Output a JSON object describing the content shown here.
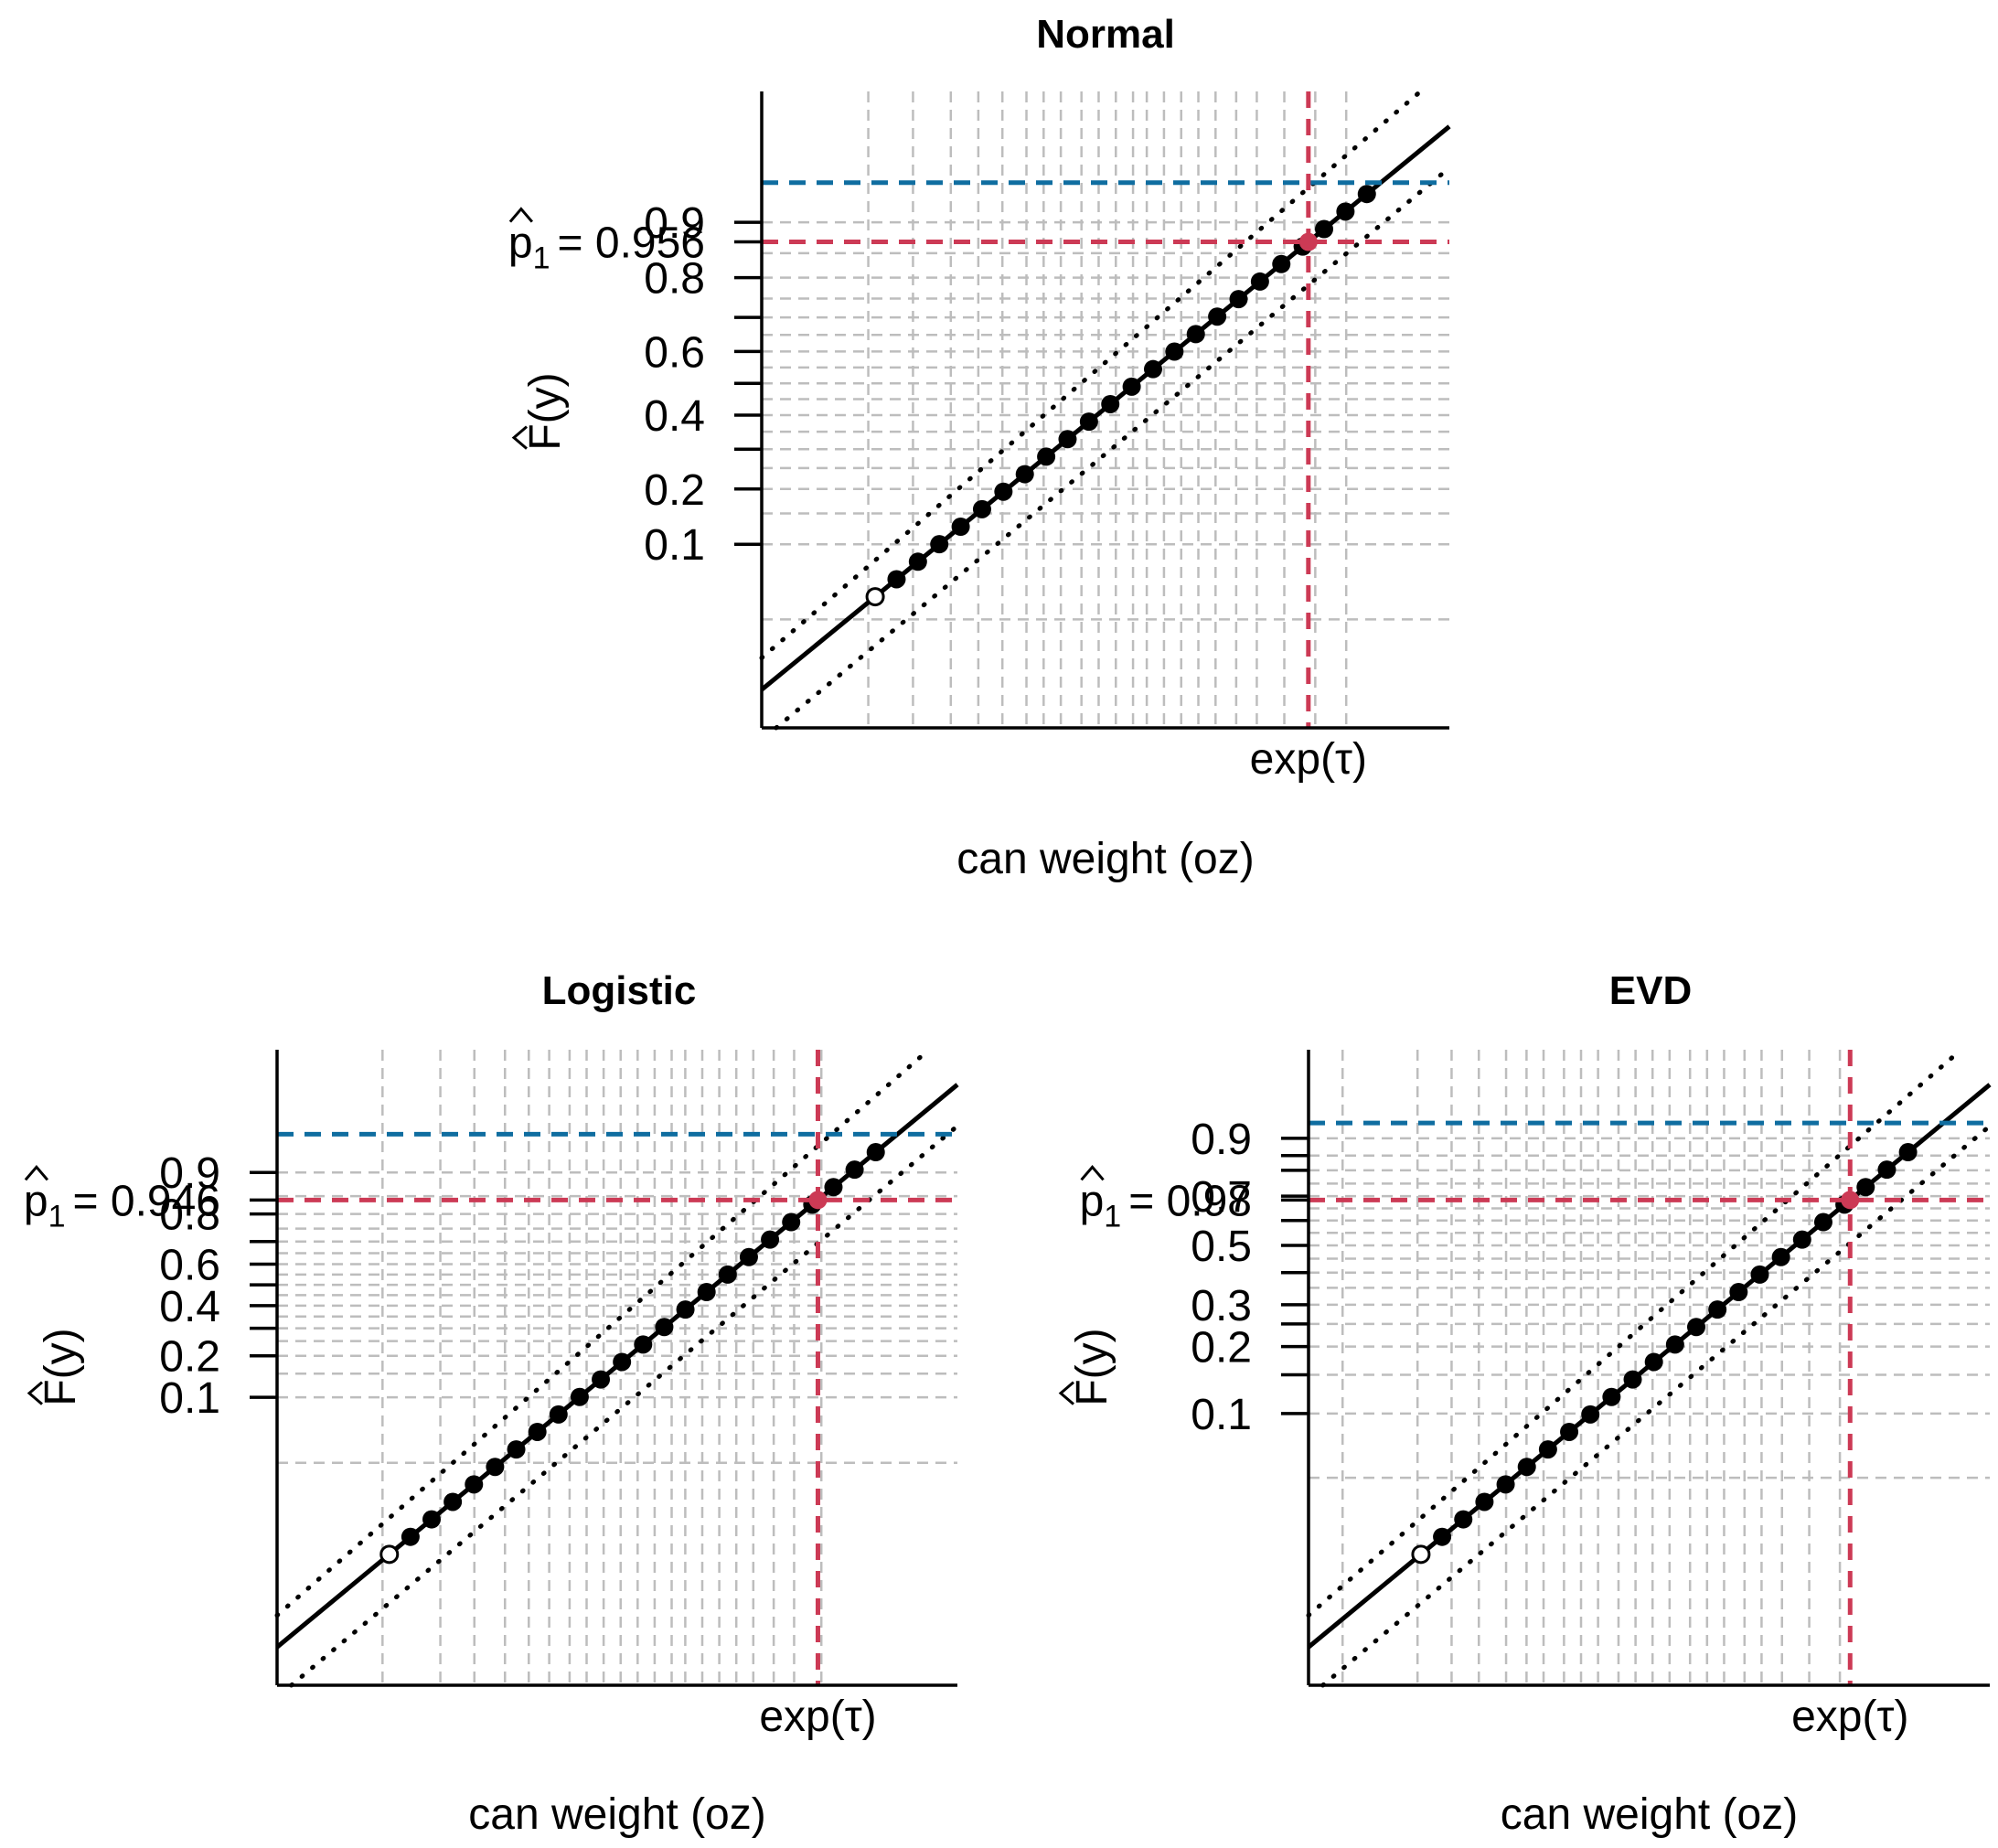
{
  "colors": {
    "red": "#cc3a55",
    "blue": "#0f6da0",
    "grid": "#bdbdbd",
    "ink": "#000000"
  },
  "chart_data": [
    {
      "type": "scatter",
      "title": "Normal",
      "xlabel": "can weight (oz)",
      "ylabel": "F(y)",
      "x_special_label": "exp(τ)",
      "p_hat_label": "p",
      "p_hat_value": "0.956",
      "p_hat_text": "= 0.956",
      "yticks": [
        {
          "value": 0.1,
          "label": "0.1"
        },
        {
          "value": 0.2,
          "label": "0.2"
        },
        {
          "value": 0.4,
          "label": "0.4"
        },
        {
          "value": 0.6,
          "label": "0.6"
        },
        {
          "value": 0.8,
          "label": "0.8"
        },
        {
          "value": 0.9,
          "label": "0.9"
        }
      ],
      "minor_yticks": [
        0.3,
        0.5,
        0.7
      ],
      "hgrid": [
        0.03,
        0.1,
        0.15,
        0.2,
        0.25,
        0.3,
        0.35,
        0.4,
        0.45,
        0.5,
        0.55,
        0.6,
        0.65,
        0.7,
        0.75,
        0.8,
        0.85,
        0.9
      ],
      "vgrid": [
        0.155,
        0.22,
        0.275,
        0.315,
        0.35,
        0.385,
        0.41,
        0.435,
        0.465,
        0.49,
        0.515,
        0.54,
        0.56,
        0.585,
        0.61,
        0.635,
        0.66,
        0.69,
        0.72,
        0.76,
        0.805,
        0.85
      ],
      "exp_tau": 0.795,
      "blue_level": 0.945,
      "n_points": 24,
      "first_point_open": true
    },
    {
      "type": "scatter",
      "title": "Logistic",
      "xlabel": "can weight (oz)",
      "ylabel": "F(y)",
      "x_special_label": "exp(τ)",
      "p_hat_label": "p",
      "p_hat_value": "0.946",
      "p_hat_text": "= 0.946",
      "yticks": [
        {
          "value": 0.1,
          "label": "0.1"
        },
        {
          "value": 0.2,
          "label": "0.2"
        },
        {
          "value": 0.4,
          "label": "0.4"
        },
        {
          "value": 0.6,
          "label": "0.6"
        },
        {
          "value": 0.8,
          "label": "0.8"
        },
        {
          "value": 0.9,
          "label": "0.9"
        }
      ],
      "minor_yticks": [
        0.3,
        0.5,
        0.7
      ],
      "hgrid": [
        0.03,
        0.1,
        0.15,
        0.2,
        0.25,
        0.3,
        0.35,
        0.4,
        0.45,
        0.5,
        0.55,
        0.6,
        0.65,
        0.7,
        0.75,
        0.8,
        0.85,
        0.9
      ],
      "vgrid": [
        0.155,
        0.24,
        0.29,
        0.335,
        0.37,
        0.4,
        0.43,
        0.455,
        0.48,
        0.505,
        0.53,
        0.555,
        0.58,
        0.6,
        0.625,
        0.65,
        0.675,
        0.7,
        0.73,
        0.76,
        0.8
      ],
      "exp_tau": 0.795,
      "blue_level": 0.95,
      "n_points": 24,
      "first_point_open": true
    },
    {
      "type": "scatter",
      "title": "EVD",
      "xlabel": "can weight (oz)",
      "ylabel": "F(y)",
      "x_special_label": "exp(τ)",
      "p_hat_label": "p",
      "p_hat_value": "0.98",
      "p_hat_text": "= 0.98",
      "yticks": [
        {
          "value": 0.1,
          "label": "0.1"
        },
        {
          "value": 0.2,
          "label": "0.2"
        },
        {
          "value": 0.3,
          "label": "0.3"
        },
        {
          "value": 0.5,
          "label": "0.5"
        },
        {
          "value": 0.7,
          "label": "0.7"
        },
        {
          "value": 0.9,
          "label": "0.9"
        }
      ],
      "minor_yticks": [
        0.15,
        0.25,
        0.4,
        0.6,
        0.8,
        0.85
      ],
      "hgrid": [
        0.05,
        0.1,
        0.15,
        0.2,
        0.25,
        0.3,
        0.35,
        0.4,
        0.45,
        0.5,
        0.55,
        0.6,
        0.65,
        0.7,
        0.75,
        0.8,
        0.85,
        0.9
      ],
      "vgrid": [
        0.05,
        0.16,
        0.21,
        0.25,
        0.29,
        0.32,
        0.345,
        0.375,
        0.4,
        0.425,
        0.455,
        0.48,
        0.505,
        0.53,
        0.56,
        0.585,
        0.61,
        0.64,
        0.665,
        0.695,
        0.735,
        0.78
      ],
      "exp_tau": 0.795,
      "blue_level": 0.935,
      "n_points": 24,
      "first_point_open": true
    }
  ]
}
